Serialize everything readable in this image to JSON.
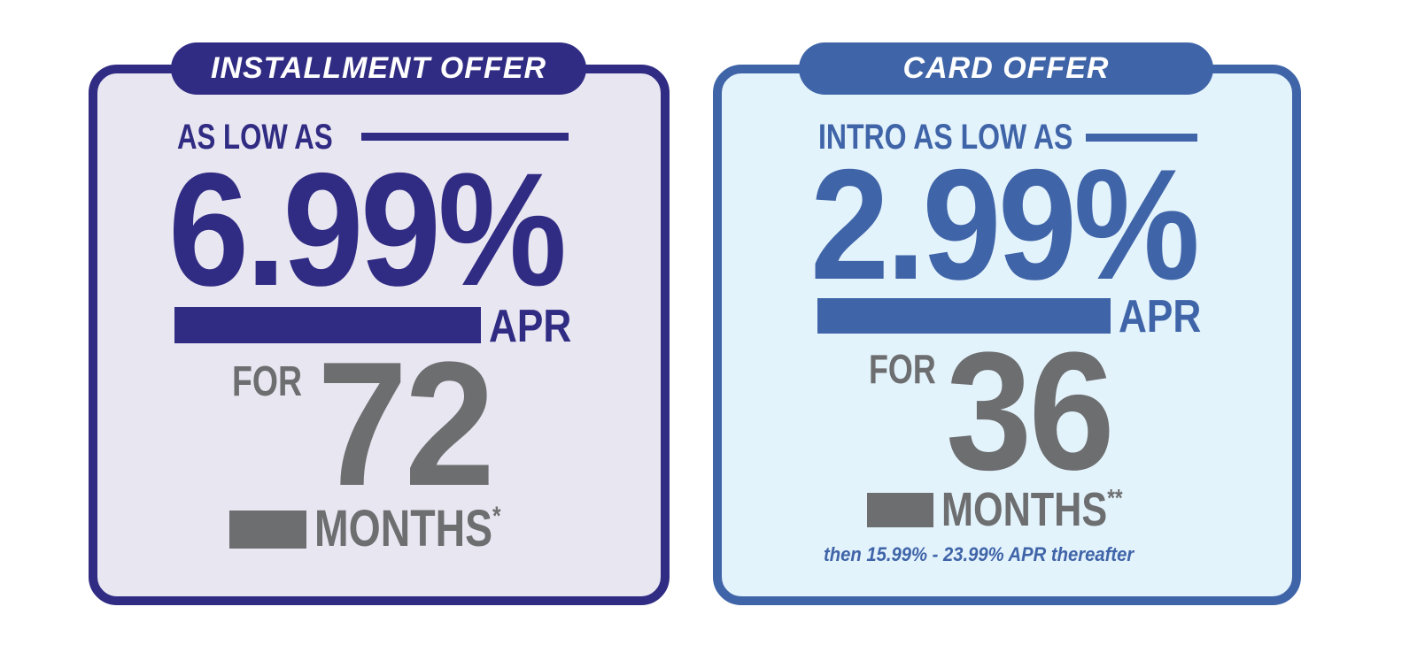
{
  "colors": {
    "navy": "#312c83",
    "navy_bg": "#e8e6f1",
    "blue": "#3f64a8",
    "blue_bg": "#e3f3fc",
    "gray": "#6d6e70"
  },
  "installment": {
    "tab": "INSTALLMENT OFFER",
    "lead": "AS LOW AS",
    "rate": "6.99%",
    "apr": "APR",
    "for": "FOR",
    "term": "72",
    "unit": "MONTHS",
    "footnote_mark": "*"
  },
  "card": {
    "tab": "CARD OFFER",
    "lead": "INTRO AS LOW AS",
    "rate": "2.99%",
    "apr": "APR",
    "for": "FOR",
    "term": "36",
    "unit": "MONTHS",
    "footnote_mark": "**",
    "note": "then 15.99% - 23.99% APR thereafter"
  }
}
